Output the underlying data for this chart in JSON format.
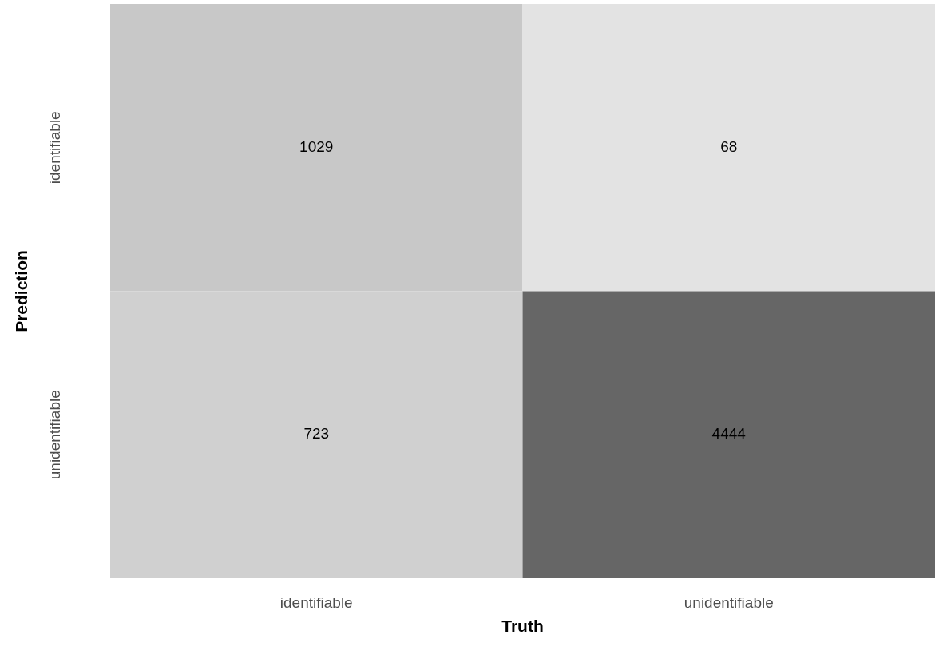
{
  "chart_data": {
    "type": "heatmap",
    "xlabel": "Truth",
    "ylabel": "Prediction",
    "categories": [
      "identifiable",
      "unidentifiable"
    ],
    "y_categories": [
      "identifiable",
      "unidentifiable"
    ],
    "cells": [
      [
        1029,
        68
      ],
      [
        723,
        4444
      ]
    ],
    "data_labels": true
  }
}
